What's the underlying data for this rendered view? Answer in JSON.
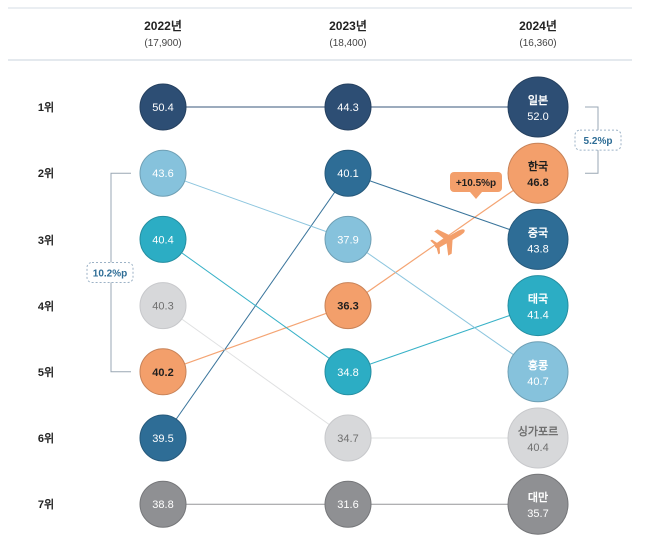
{
  "chart_data": {
    "type": "bump",
    "title": "",
    "columns": [
      {
        "label": "2022년",
        "total": "(17,900)"
      },
      {
        "label": "2023년",
        "total": "(18,400)"
      },
      {
        "label": "2024년",
        "total": "(16,360)"
      }
    ],
    "rank_labels": [
      "1위",
      "2위",
      "3위",
      "4위",
      "5위",
      "6위",
      "7위"
    ],
    "series": [
      {
        "name": "일본",
        "color": "#2d4e74",
        "ranks": [
          1,
          1,
          1
        ],
        "values": [
          "50.4",
          "44.3",
          "52.0"
        ]
      },
      {
        "name": "한국",
        "color": "#f39f6b",
        "ranks": [
          5,
          4,
          2
        ],
        "values": [
          "40.2",
          "36.3",
          "46.8"
        ],
        "highlight": true
      },
      {
        "name": "중국",
        "color": "#2e6d96",
        "ranks": [
          6,
          2,
          3
        ],
        "values": [
          "39.5",
          "40.1",
          "43.8"
        ]
      },
      {
        "name": "태국",
        "color": "#2cadc4",
        "ranks": [
          3,
          5,
          4
        ],
        "values": [
          "40.4",
          "34.8",
          "41.4"
        ]
      },
      {
        "name": "홍콩",
        "color": "#86c2dc",
        "ranks": [
          2,
          3,
          5
        ],
        "values": [
          "43.6",
          "37.9",
          "40.7"
        ]
      },
      {
        "name": "싱가포르",
        "color": "#d7d8da",
        "ranks": [
          4,
          6,
          6
        ],
        "values": [
          "40.3",
          "34.7",
          "40.4"
        ],
        "text_color": "#6f6f6f"
      },
      {
        "name": "대만",
        "color": "#8f9093",
        "ranks": [
          7,
          7,
          7
        ],
        "values": [
          "38.8",
          "31.6",
          "35.7"
        ]
      }
    ],
    "annotations": [
      {
        "type": "bracket",
        "side": "left",
        "from_rank": 2,
        "to_rank": 5,
        "label": "10.2%p",
        "color": "#2e6d96"
      },
      {
        "type": "bracket",
        "side": "right",
        "from_rank": 1,
        "to_rank": 2,
        "label": "5.2%p",
        "color": "#2e6d96"
      },
      {
        "type": "callout",
        "target": "한국",
        "label": "+10.5%p",
        "color": "#f39f6b"
      }
    ]
  }
}
